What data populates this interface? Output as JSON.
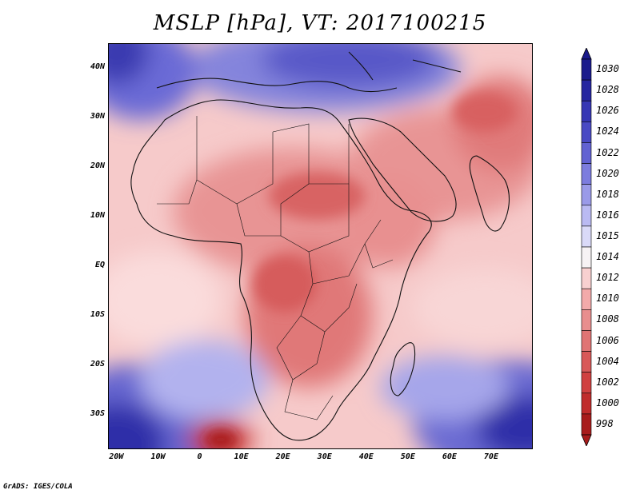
{
  "title": "MSLP [hPa], VT: 2017100215",
  "footer": "GrADS: IGES/COLA",
  "map": {
    "projection": "lat-lon",
    "lon_range": [
      -22,
      80
    ],
    "lat_range": [
      -37,
      45
    ],
    "y_ticks": [
      {
        "lat": 40,
        "label": "40N"
      },
      {
        "lat": 30,
        "label": "30N"
      },
      {
        "lat": 20,
        "label": "20N"
      },
      {
        "lat": 10,
        "label": "10N"
      },
      {
        "lat": 0,
        "label": "EQ"
      },
      {
        "lat": -10,
        "label": "10S"
      },
      {
        "lat": -20,
        "label": "20S"
      },
      {
        "lat": -30,
        "label": "30S"
      }
    ],
    "x_ticks": [
      {
        "lon": -20,
        "label": "20W"
      },
      {
        "lon": -10,
        "label": "10W"
      },
      {
        "lon": 0,
        "label": "0"
      },
      {
        "lon": 10,
        "label": "10E"
      },
      {
        "lon": 20,
        "label": "20E"
      },
      {
        "lon": 30,
        "label": "30E"
      },
      {
        "lon": 40,
        "label": "40E"
      },
      {
        "lon": 50,
        "label": "50E"
      },
      {
        "lon": 60,
        "label": "60E"
      },
      {
        "lon": 70,
        "label": "70E"
      }
    ]
  },
  "colorbar": {
    "levels": [
      {
        "label": "1030",
        "color": "#1a1a8c"
      },
      {
        "label": "1028",
        "color": "#2525a0"
      },
      {
        "label": "1026",
        "color": "#3636b4"
      },
      {
        "label": "1024",
        "color": "#4a4ac4"
      },
      {
        "label": "1022",
        "color": "#6262d2"
      },
      {
        "label": "1020",
        "color": "#7c7cde"
      },
      {
        "label": "1018",
        "color": "#9a9ae8"
      },
      {
        "label": "1016",
        "color": "#babaf2"
      },
      {
        "label": "1015",
        "color": "#dadaf8"
      },
      {
        "label": "1014",
        "color": "#f6f2f4"
      },
      {
        "label": "1012",
        "color": "#f8d0d0"
      },
      {
        "label": "1010",
        "color": "#f2aaaa"
      },
      {
        "label": "1008",
        "color": "#e88e8e"
      },
      {
        "label": "1006",
        "color": "#e07474"
      },
      {
        "label": "1004",
        "color": "#d85858"
      },
      {
        "label": "1002",
        "color": "#d04040"
      },
      {
        "label": "1000",
        "color": "#c02c2c"
      },
      {
        "label": "998",
        "color": "#a81c1c"
      }
    ]
  }
}
